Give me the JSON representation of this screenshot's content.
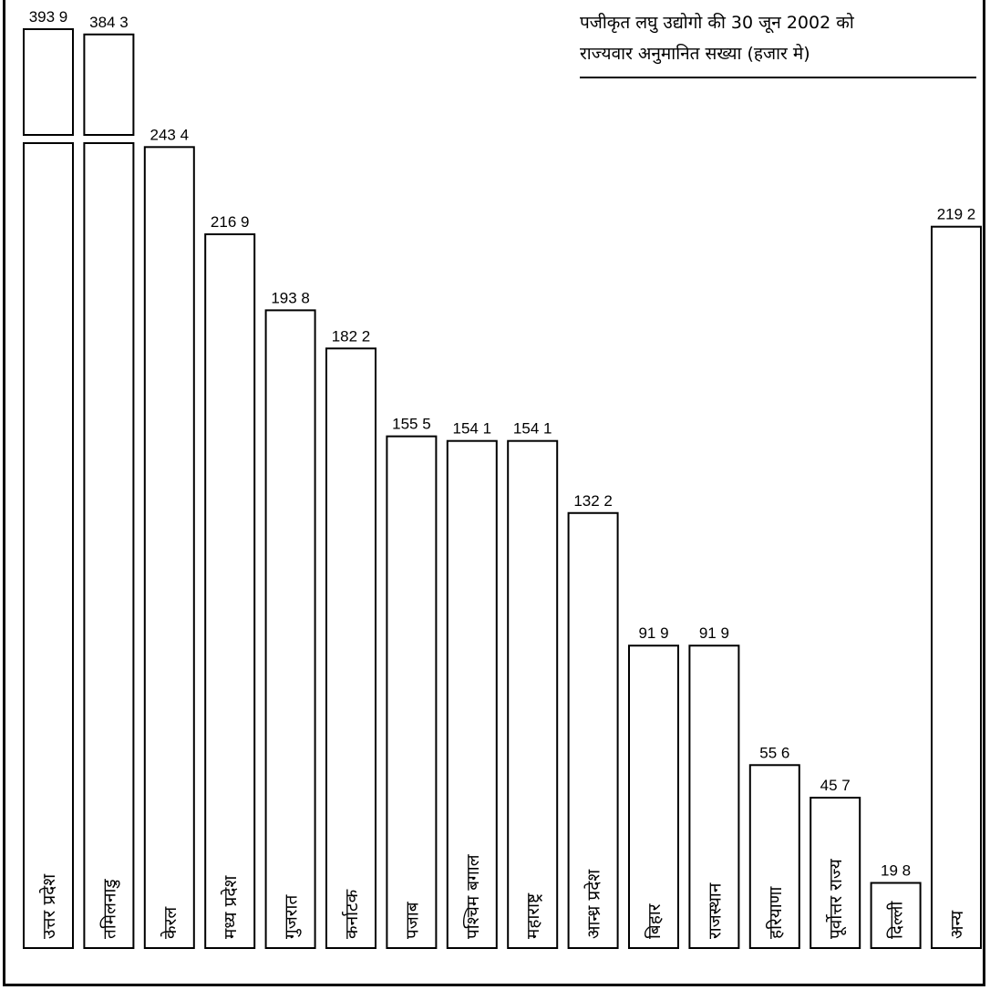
{
  "chart_data": {
    "type": "bar",
    "title": "पजीकृत लघु उद्योगो की 30 जून  2002 को राज्यवार अनुमानित सख्या (हजार मे)",
    "title_lines": [
      "पजीकृत लघु उद्योगो की 30 जून  2002 को",
      "राज्यवार अनुमानित सख्या (हजार मे)"
    ],
    "xlabel": "",
    "ylabel": "",
    "axis_break": true,
    "categories": [
      "उत्तर प्रदेश",
      "तमिलनाडु",
      "केरल",
      "मध्य प्रदेश",
      "गुजरात",
      "कर्नाटक",
      "पजाब",
      "पश्चिम बगाल",
      "महाराष्ट्र",
      "आन्ध्र प्रदेश",
      "बिहार",
      "राजस्थान",
      "हरियाणा",
      "पूर्वोत्तर राज्य",
      "दिल्ली",
      "अन्य"
    ],
    "values": [
      393.9,
      384.3,
      243.4,
      216.9,
      193.8,
      182.2,
      155.5,
      154.1,
      154.1,
      132.2,
      91.9,
      91.9,
      55.6,
      45.7,
      19.8,
      219.2
    ],
    "value_labels": [
      "393 9",
      "384 3",
      "243 4",
      "216 9",
      "193 8",
      "182 2",
      "155 5",
      "154 1",
      "154 1",
      "132 2",
      "91 9",
      "91 9",
      "55 6",
      "45 7",
      "19 8",
      "219 2"
    ],
    "grid": false,
    "legend": "none"
  }
}
